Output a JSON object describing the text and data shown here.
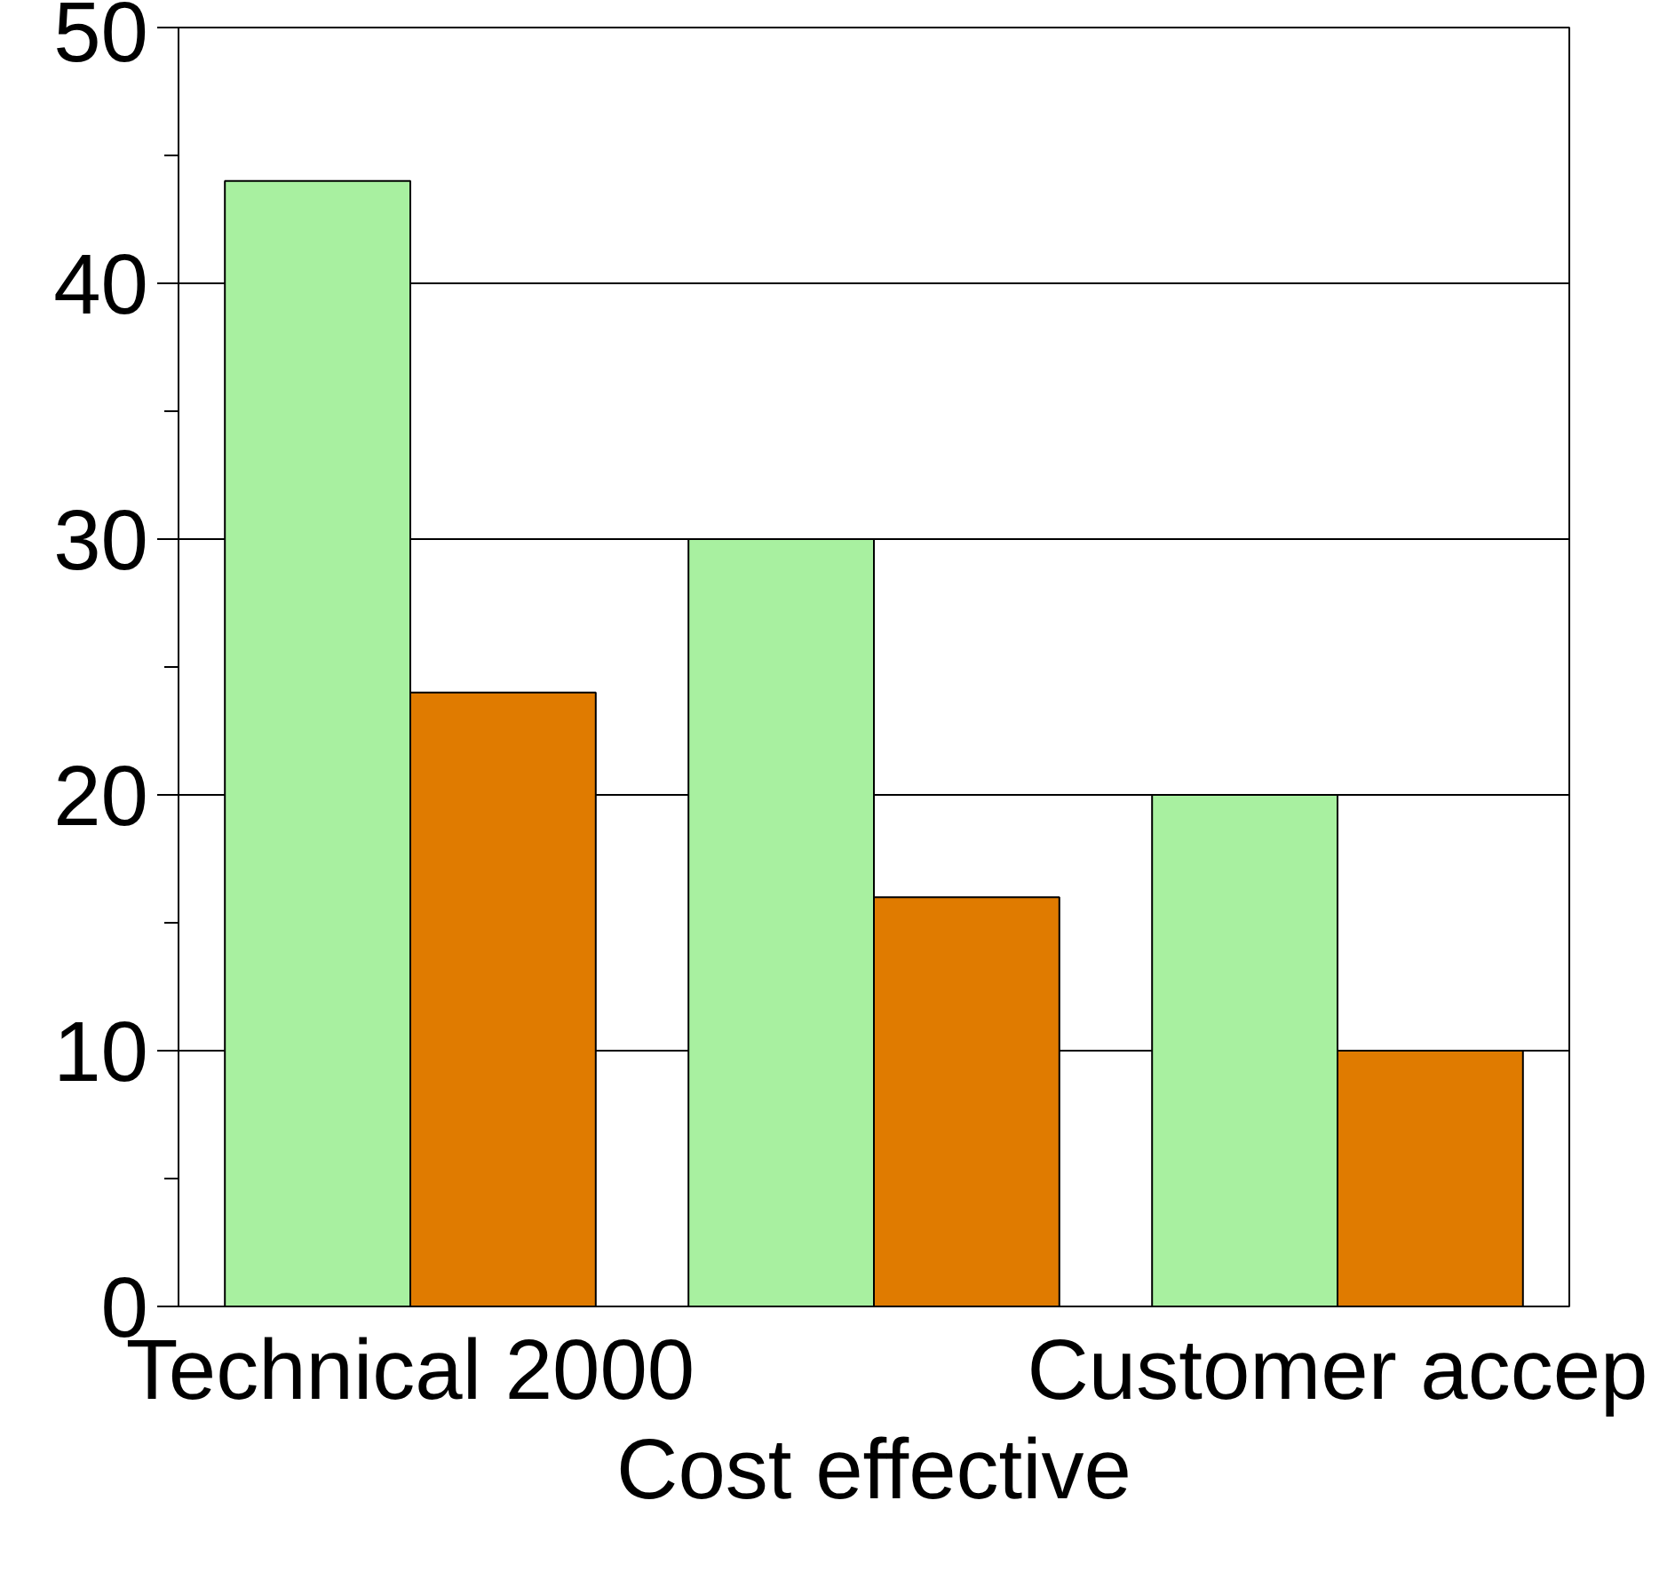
{
  "chart_data": {
    "type": "bar",
    "categories": [
      "Technical 2000",
      "Cost effective",
      "Customer accep"
    ],
    "series": [
      {
        "color": "#a8f0a0",
        "values": [
          44,
          30,
          20
        ]
      },
      {
        "color": "#e07b00",
        "values": [
          24,
          16,
          10
        ]
      }
    ],
    "ylim": [
      0,
      50
    ],
    "yticks": [
      0,
      10,
      20,
      30,
      40,
      50
    ],
    "grid": "y"
  }
}
